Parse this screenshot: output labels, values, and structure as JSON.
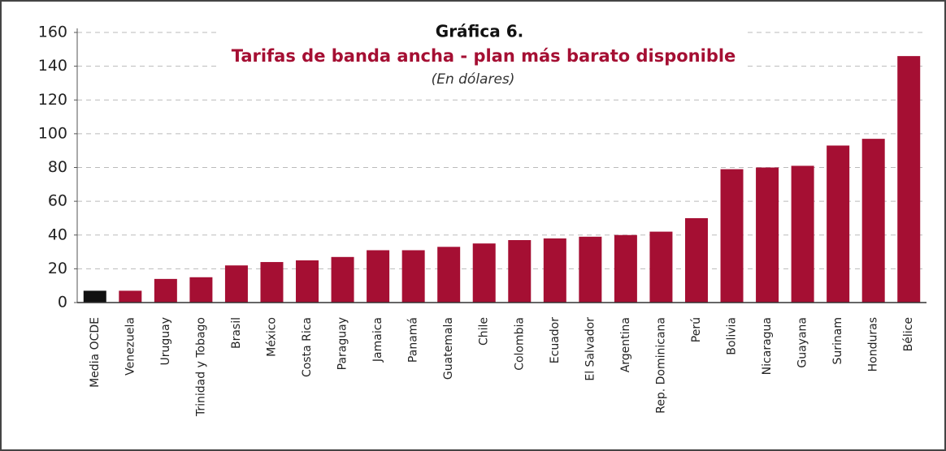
{
  "chart_data": {
    "type": "bar",
    "title": "Gráfica 6.",
    "subtitle": "Tarifas de banda ancha - plan más barato disponible",
    "unit_note": "(En dólares)",
    "categories": [
      "Media OCDE",
      "Venezuela",
      "Uruguay",
      "Trinidad y Tobago",
      "Brasil",
      "México",
      "Costa Rica",
      "Paraguay",
      "Jamaica",
      "Panamá",
      "Guatemala",
      "Chile",
      "Colombia",
      "Ecuador",
      "El Salvador",
      "Argentina",
      "Rep. Dominicana",
      "Perú",
      "Bolivia",
      "Nicaragua",
      "Guayana",
      "Surinam",
      "Honduras",
      "Bélice"
    ],
    "values": [
      7,
      7,
      14,
      15,
      22,
      24,
      25,
      27,
      31,
      31,
      33,
      35,
      37,
      38,
      39,
      40,
      42,
      50,
      79,
      80,
      81,
      93,
      97,
      146
    ],
    "colors": [
      "#111111",
      "#a50f33",
      "#a50f33",
      "#a50f33",
      "#a50f33",
      "#a50f33",
      "#a50f33",
      "#a50f33",
      "#a50f33",
      "#a50f33",
      "#a50f33",
      "#a50f33",
      "#a50f33",
      "#a50f33",
      "#a50f33",
      "#a50f33",
      "#a50f33",
      "#a50f33",
      "#a50f33",
      "#a50f33",
      "#a50f33",
      "#a50f33",
      "#a50f33",
      "#a50f33"
    ],
    "ylim": [
      0,
      160
    ],
    "yticks": [
      0,
      20,
      40,
      60,
      80,
      100,
      120,
      140,
      160
    ],
    "grid": true
  }
}
